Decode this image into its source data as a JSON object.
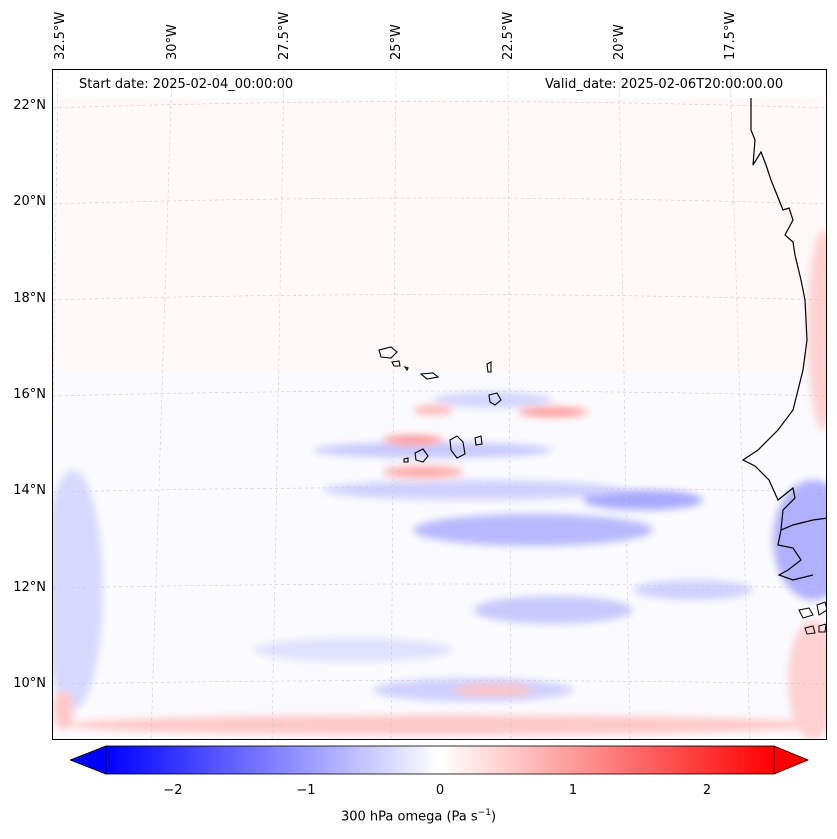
{
  "header": {
    "start_date": "Start date: 2025-02-04_00:00:00",
    "valid_date": "Valid_date: 2025-02-06T20:00:00.00"
  },
  "longitude_labels": [
    "32.5°W",
    "30°W",
    "27.5°W",
    "25°W",
    "22.5°W",
    "20°W",
    "17.5°W"
  ],
  "latitude_labels": [
    "22°N",
    "20°N",
    "18°N",
    "16°N",
    "14°N",
    "12°N",
    "10°N"
  ],
  "colorbar": {
    "title": "300 hPa omega (Pa s",
    "title_sup": "−1",
    "title_end": ")",
    "ticks": [
      "−2",
      "−1",
      "0",
      "1",
      "2"
    ],
    "tick_values": [
      -2,
      -1,
      0,
      1,
      2
    ],
    "range": [
      -2.6,
      2.6
    ],
    "colors": {
      "negative": "#0000ff",
      "zero": "#ffffff",
      "positive": "#ff0000"
    }
  },
  "map": {
    "variable": "300 hPa omega",
    "region": "Cape Verde / West Africa coast",
    "coastline_color": "#000000"
  }
}
